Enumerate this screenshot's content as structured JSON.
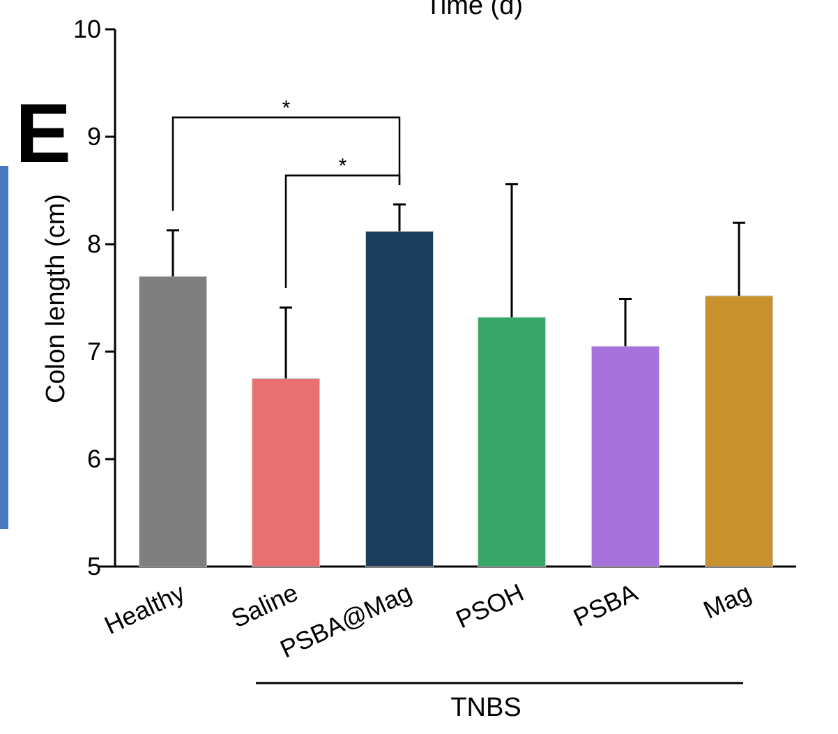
{
  "panel_label": "E",
  "top_cut_text": "Time (d)",
  "colors": {
    "axis": "#000000",
    "left_strip": "#4a79c4"
  },
  "chart_data": {
    "type": "bar",
    "title": "",
    "xlabel": "",
    "ylabel": "Colon length (cm)",
    "ylim": [
      5,
      10
    ],
    "yticks": [
      5,
      6,
      7,
      8,
      9,
      10
    ],
    "categories": [
      "Healthy",
      "Saline",
      "PSBA@Mag",
      "PSOH",
      "PSBA",
      "Mag"
    ],
    "values": [
      7.7,
      6.75,
      8.12,
      7.32,
      7.05,
      7.52
    ],
    "errors": [
      0.43,
      0.66,
      0.25,
      1.24,
      0.44,
      0.68
    ],
    "colors": [
      "#7f7f7f",
      "#e97071",
      "#1c3d5c",
      "#3aa76a",
      "#a872dc",
      "#c8912d"
    ],
    "group": {
      "label": "TNBS",
      "categories": [
        "Saline",
        "PSBA@Mag",
        "PSOH",
        "PSBA",
        "Mag"
      ]
    },
    "significance": [
      {
        "from": "Healthy",
        "to": "PSBA@Mag",
        "label": "*",
        "y": 9.18
      },
      {
        "from": "Saline",
        "to": "PSBA@Mag",
        "label": "*",
        "y": 8.64
      }
    ],
    "grid": false,
    "legend": "none"
  }
}
